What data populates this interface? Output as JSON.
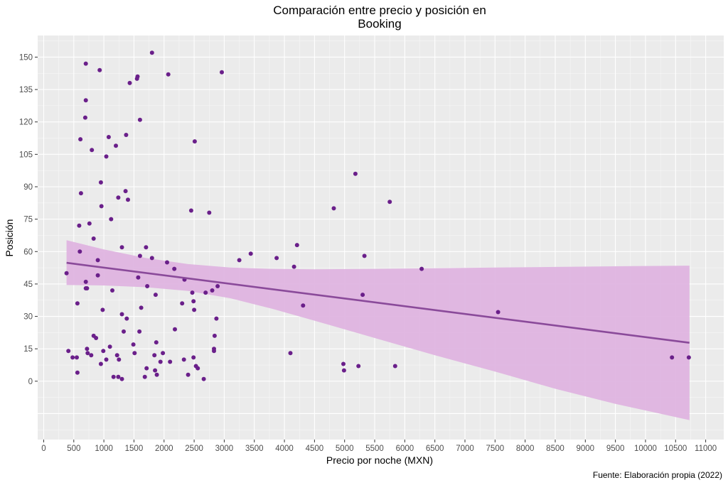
{
  "chart_data": {
    "type": "scatter",
    "title": "Comparación entre precio y posición en Booking",
    "title_lines": [
      "Comparación entre precio y posición en",
      "Booking"
    ],
    "xlabel": "Precio por noche (MXN)",
    "ylabel": "Posición",
    "caption": "Fuente: Elaboración propia (2022)",
    "xlim": [
      -100,
      11300
    ],
    "ylim": [
      -27,
      160
    ],
    "x_ticks": [
      0,
      500,
      1000,
      1500,
      2000,
      2500,
      3000,
      3500,
      4000,
      4500,
      5000,
      5500,
      6000,
      6500,
      7000,
      7500,
      8000,
      8500,
      9000,
      9500,
      10000,
      10500,
      11000
    ],
    "y_ticks": [
      0,
      15,
      30,
      45,
      60,
      75,
      90,
      105,
      120,
      135,
      150
    ],
    "grid": true,
    "legend": "none",
    "colors": {
      "panel": "#ebebeb",
      "grid_major": "#ffffff",
      "point": "#6a1f8a",
      "trend_line": "#8a4a9a",
      "ribbon": "#dfb4e0"
    },
    "trend": {
      "method": "linear",
      "x_range": [
        380,
        10730
      ],
      "fit": [
        54.8,
        17.8
      ],
      "ci_lower": [
        44.5,
        -18
      ],
      "ci_upper": [
        65.3,
        53.5
      ],
      "ci_mid_x": 2900,
      "ci_mid_lower": [
        44.8,
        39.5
      ],
      "ci_mid_upper": [
        52.3,
        53.2
      ],
      "ci_shape_x": [
        380,
        1000,
        1700,
        2400,
        3100,
        3800,
        4500,
        5500,
        6500,
        7500,
        8500,
        9500,
        10730
      ],
      "ci_shape_lower": [
        44.5,
        44.3,
        43.5,
        41.8,
        38.4,
        33.5,
        28.0,
        20.0,
        12.0,
        4.5,
        -3.5,
        -10.5,
        -18.0
      ],
      "ci_shape_upper": [
        65.3,
        61.0,
        57.0,
        54.2,
        52.6,
        52.0,
        51.8,
        52.0,
        52.3,
        52.6,
        52.9,
        53.2,
        53.5
      ]
    },
    "points": [
      [
        380,
        50
      ],
      [
        410,
        14
      ],
      [
        480,
        11
      ],
      [
        550,
        11
      ],
      [
        560,
        36
      ],
      [
        560,
        4
      ],
      [
        590,
        72
      ],
      [
        600,
        60
      ],
      [
        610,
        112
      ],
      [
        620,
        87
      ],
      [
        700,
        147
      ],
      [
        700,
        130
      ],
      [
        690,
        122
      ],
      [
        700,
        46
      ],
      [
        700,
        43
      ],
      [
        720,
        43
      ],
      [
        720,
        15
      ],
      [
        730,
        13
      ],
      [
        760,
        73
      ],
      [
        790,
        12
      ],
      [
        800,
        107
      ],
      [
        830,
        66
      ],
      [
        830,
        21
      ],
      [
        870,
        20
      ],
      [
        900,
        56
      ],
      [
        900,
        49
      ],
      [
        930,
        144
      ],
      [
        950,
        92
      ],
      [
        960,
        81
      ],
      [
        950,
        8
      ],
      [
        980,
        33
      ],
      [
        990,
        14
      ],
      [
        1040,
        104
      ],
      [
        1040,
        10
      ],
      [
        1080,
        113
      ],
      [
        1100,
        16
      ],
      [
        1120,
        75
      ],
      [
        1140,
        42
      ],
      [
        1160,
        2
      ],
      [
        1200,
        109
      ],
      [
        1220,
        12
      ],
      [
        1240,
        85
      ],
      [
        1240,
        2
      ],
      [
        1250,
        10
      ],
      [
        1300,
        62
      ],
      [
        1300,
        31
      ],
      [
        1300,
        1
      ],
      [
        1330,
        23
      ],
      [
        1360,
        88
      ],
      [
        1370,
        114
      ],
      [
        1380,
        29
      ],
      [
        1400,
        84
      ],
      [
        1430,
        138
      ],
      [
        1490,
        17
      ],
      [
        1510,
        13
      ],
      [
        1550,
        140
      ],
      [
        1560,
        141
      ],
      [
        1570,
        48
      ],
      [
        1590,
        23
      ],
      [
        1600,
        121
      ],
      [
        1600,
        58
      ],
      [
        1620,
        34
      ],
      [
        1680,
        2
      ],
      [
        1700,
        62
      ],
      [
        1710,
        6
      ],
      [
        1720,
        44
      ],
      [
        1800,
        152
      ],
      [
        1800,
        57
      ],
      [
        1840,
        12
      ],
      [
        1850,
        5
      ],
      [
        1860,
        40
      ],
      [
        1870,
        18
      ],
      [
        1880,
        3
      ],
      [
        1940,
        9
      ],
      [
        1980,
        13
      ],
      [
        2050,
        55
      ],
      [
        2070,
        142
      ],
      [
        2100,
        9
      ],
      [
        2170,
        52
      ],
      [
        2180,
        24
      ],
      [
        2300,
        36
      ],
      [
        2330,
        10
      ],
      [
        2340,
        47
      ],
      [
        2400,
        3
      ],
      [
        2450,
        79
      ],
      [
        2470,
        41
      ],
      [
        2490,
        11
      ],
      [
        2490,
        37
      ],
      [
        2500,
        33
      ],
      [
        2510,
        111
      ],
      [
        2530,
        7
      ],
      [
        2560,
        6
      ],
      [
        2660,
        1
      ],
      [
        2690,
        41
      ],
      [
        2750,
        78
      ],
      [
        2800,
        42
      ],
      [
        2830,
        14
      ],
      [
        2830,
        15
      ],
      [
        2840,
        21
      ],
      [
        2870,
        29
      ],
      [
        2890,
        44
      ],
      [
        2960,
        143
      ],
      [
        3250,
        56
      ],
      [
        3440,
        59
      ],
      [
        3870,
        57
      ],
      [
        4100,
        13
      ],
      [
        4160,
        53
      ],
      [
        4210,
        63
      ],
      [
        4310,
        35
      ],
      [
        4820,
        80
      ],
      [
        4980,
        8
      ],
      [
        4990,
        5
      ],
      [
        5180,
        96
      ],
      [
        5230,
        7
      ],
      [
        5300,
        40
      ],
      [
        5330,
        58
      ],
      [
        5750,
        83
      ],
      [
        5840,
        7
      ],
      [
        6280,
        52
      ],
      [
        7550,
        32
      ],
      [
        10440,
        11
      ],
      [
        10720,
        11
      ]
    ]
  }
}
